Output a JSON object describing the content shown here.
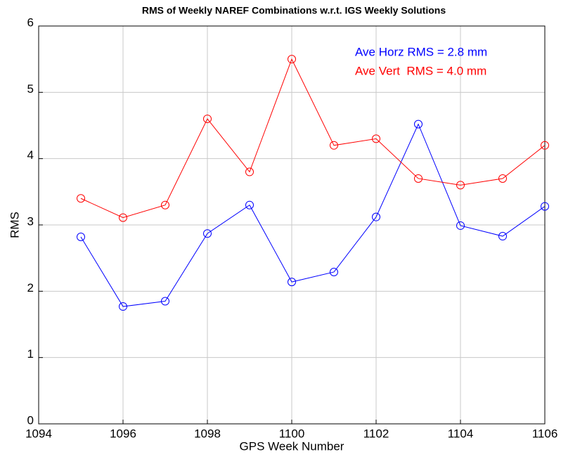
{
  "chart_data": {
    "type": "line",
    "title": "RMS of Weekly NAREF Combinations w.r.t. IGS Weekly Solutions",
    "x_label": "GPS Week Number",
    "y_label": "RMS",
    "x": [
      1095,
      1096,
      1097,
      1098,
      1099,
      1100,
      1101,
      1102,
      1103,
      1104,
      1105,
      1106
    ],
    "series": [
      {
        "color": "#0000ff",
        "values": [
          2.82,
          1.77,
          1.85,
          2.87,
          3.3,
          2.14,
          2.29,
          3.12,
          4.52,
          2.99,
          2.83,
          3.28
        ]
      },
      {
        "color": "#ff0000",
        "values": [
          3.4,
          3.11,
          3.3,
          4.6,
          3.8,
          5.5,
          4.2,
          4.3,
          3.7,
          3.6,
          3.7,
          4.2
        ]
      }
    ],
    "annotations": [
      {
        "text": "Ave Horz RMS = 2.8 mm",
        "color": "#0000ff"
      },
      {
        "text": "Ave Vert  RMS = 4.0 mm",
        "color": "#ff0000"
      }
    ],
    "xlim": [
      1094,
      1106
    ],
    "xticks": [
      1094,
      1096,
      1098,
      1100,
      1102,
      1104,
      1106
    ],
    "ylim": [
      0,
      6
    ],
    "yticks": [
      0,
      1,
      2,
      3,
      4,
      5,
      6
    ],
    "grid": true,
    "marker": "circle"
  }
}
